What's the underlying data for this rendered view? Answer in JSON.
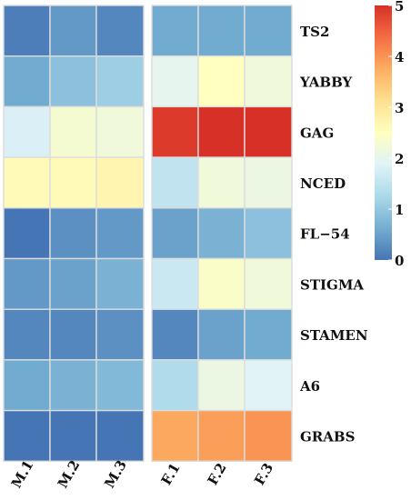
{
  "chart_data": {
    "type": "heatmap",
    "title": "",
    "rows": [
      "TS2",
      "YABBY",
      "GAG",
      "NCED",
      "FL−54",
      "STIGMA",
      "STAMEN",
      "A6",
      "GRABS"
    ],
    "columns": [
      "M.1",
      "M.2",
      "M.3",
      "F.1",
      "F.2",
      "F.3"
    ],
    "groups": [
      {
        "columns": [
          "M.1",
          "M.2",
          "M.3"
        ]
      },
      {
        "columns": [
          "F.1",
          "F.2",
          "F.3"
        ]
      }
    ],
    "values": [
      [
        0.1,
        0.4,
        0.2,
        0.6,
        0.6,
        0.6
      ],
      [
        0.6,
        0.9,
        1.1,
        2.0,
        2.5,
        2.2
      ],
      [
        1.8,
        2.3,
        2.2,
        4.9,
        5.0,
        5.0
      ],
      [
        2.6,
        2.6,
        2.7,
        1.5,
        2.2,
        2.1
      ],
      [
        0.0,
        0.3,
        0.4,
        0.5,
        0.7,
        0.9
      ],
      [
        0.4,
        0.5,
        0.7,
        1.6,
        2.4,
        2.2
      ],
      [
        0.2,
        0.2,
        0.3,
        0.2,
        0.5,
        0.6
      ],
      [
        0.6,
        0.7,
        0.8,
        1.3,
        2.1,
        1.9
      ],
      [
        0.0,
        0.0,
        0.0,
        3.8,
        3.9,
        4.0
      ]
    ],
    "colorbar": {
      "min": 0,
      "max": 5,
      "ticks": [
        "0",
        "1",
        "2",
        "3",
        "4",
        "5"
      ],
      "colors": [
        "#4575b4",
        "#74add1",
        "#abd9e9",
        "#e0f3f8",
        "#ffffbf",
        "#fee090",
        "#fdae61",
        "#f46d43",
        "#d73027"
      ]
    },
    "grid": true,
    "legend": "right"
  }
}
